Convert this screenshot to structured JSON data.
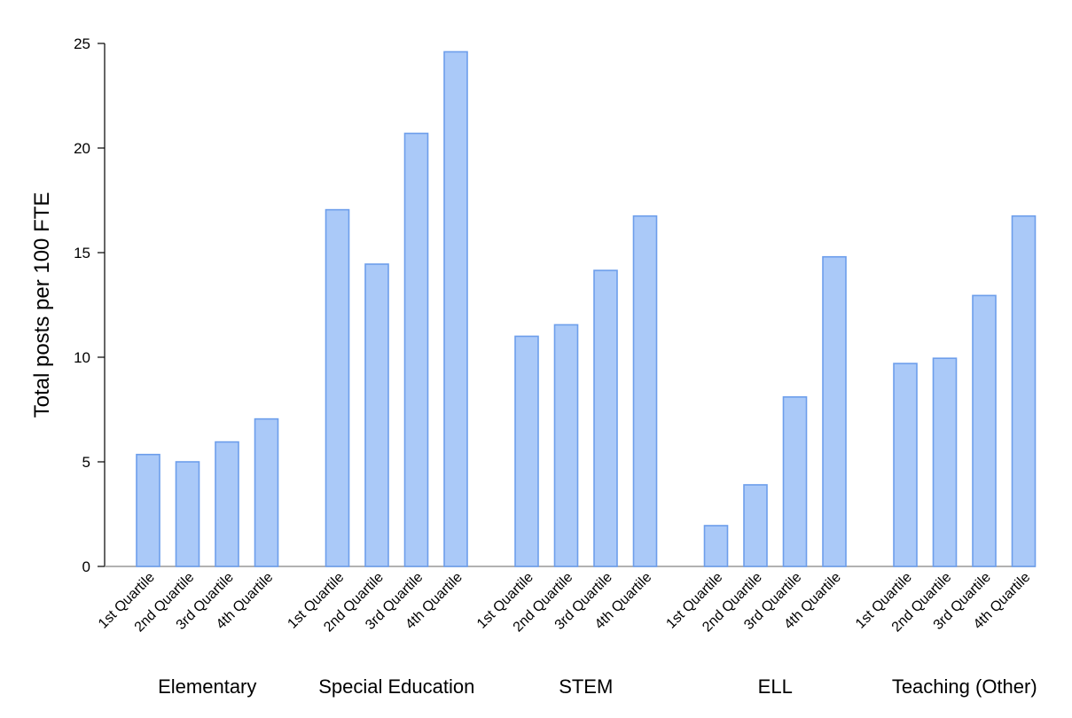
{
  "chart_data": {
    "type": "bar",
    "ylabel": "Total posts per 100 FTE",
    "ylim": [
      0,
      25
    ],
    "yticks": [
      0,
      5,
      10,
      15,
      20,
      25
    ],
    "grid": false,
    "legend": "none",
    "bar_color": "#aac9f8",
    "bar_edge_color": "#6d9eeb",
    "axis_color": "#000000",
    "baseline_color": "#999999",
    "groups": [
      {
        "name": "Elementary",
        "categories": [
          "1st Quartile",
          "2nd Quartile",
          "3rd Quartile",
          "4th Quartile"
        ],
        "values": [
          5.35,
          5.0,
          5.95,
          7.05
        ]
      },
      {
        "name": "Special Education",
        "categories": [
          "1st Quartile",
          "2nd Quartile",
          "3rd Quartile",
          "4th Quartile"
        ],
        "values": [
          17.05,
          14.45,
          20.7,
          24.6
        ]
      },
      {
        "name": "STEM",
        "categories": [
          "1st Quartile",
          "2nd Quartile",
          "3rd Quartile",
          "4th Quartile"
        ],
        "values": [
          11.0,
          11.55,
          14.15,
          16.75
        ]
      },
      {
        "name": "ELL",
        "categories": [
          "1st Quartile",
          "2nd Quartile",
          "3rd Quartile",
          "4th Quartile"
        ],
        "values": [
          1.95,
          3.9,
          8.1,
          14.8
        ]
      },
      {
        "name": "Teaching (Other)",
        "categories": [
          "1st Quartile",
          "2nd Quartile",
          "3rd Quartile",
          "4th Quartile"
        ],
        "values": [
          9.7,
          9.95,
          12.95,
          16.75
        ]
      }
    ]
  }
}
